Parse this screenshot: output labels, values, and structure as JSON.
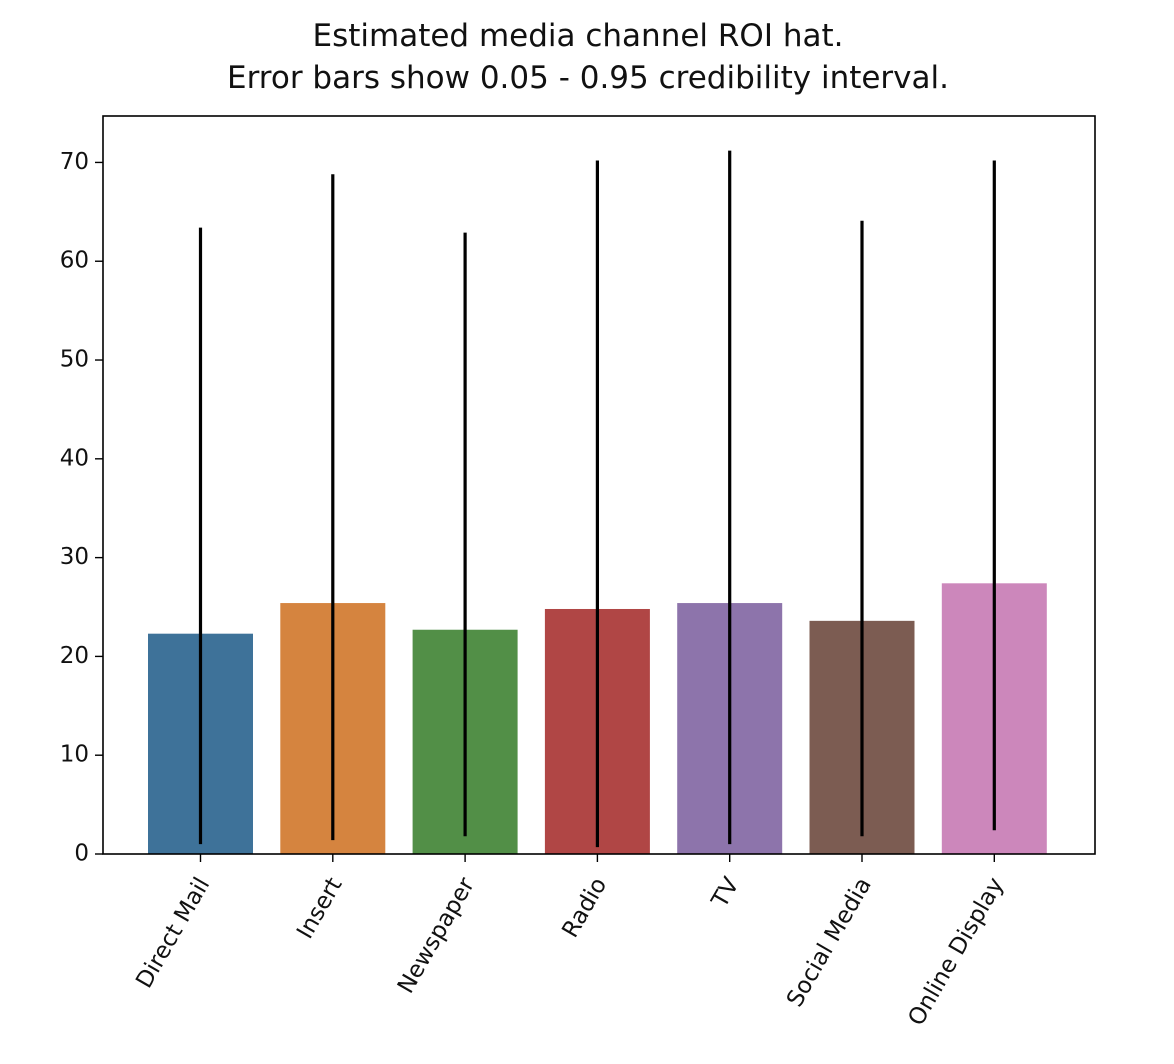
{
  "chart_data": {
    "type": "bar",
    "title": "Estimated media channel ROI hat.",
    "subtitle": "Error bars show 0.05 - 0.95 credibility interval.",
    "categories": [
      "Direct Mail",
      "Insert",
      "Newspaper",
      "Radio",
      "TV",
      "Social Media",
      "Online Display"
    ],
    "values": [
      22.3,
      25.4,
      22.7,
      24.8,
      25.4,
      23.6,
      27.4
    ],
    "error_low": [
      1.0,
      1.4,
      1.8,
      0.7,
      1.0,
      1.8,
      2.4
    ],
    "error_high": [
      63.4,
      68.8,
      62.9,
      70.2,
      71.2,
      64.1,
      70.2
    ],
    "colors": [
      "#3e7299",
      "#d5843f",
      "#528f47",
      "#b04645",
      "#8d74ab",
      "#7c5c52",
      "#cc87bb"
    ],
    "error_bar_color": "#000000",
    "xlabel": "",
    "ylabel": "",
    "ylim": [
      0,
      74.7
    ],
    "yticks": [
      0,
      10,
      20,
      30,
      40,
      50,
      60,
      70
    ],
    "grid": false,
    "legend": "none"
  }
}
